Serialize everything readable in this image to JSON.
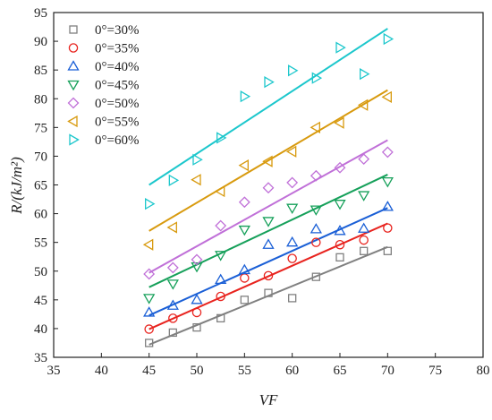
{
  "chart_data": {
    "type": "scatter",
    "title": "",
    "xlabel": "VF",
    "ylabel": "R/(kJ/m²)",
    "xlim": [
      35,
      80
    ],
    "ylim": [
      35,
      95
    ],
    "xticks": [
      35,
      40,
      45,
      50,
      55,
      60,
      65,
      70,
      75,
      80
    ],
    "yticks": [
      35,
      40,
      45,
      50,
      55,
      60,
      65,
      70,
      75,
      80,
      85,
      90,
      95
    ],
    "grid": false,
    "legend_position": "top-left",
    "x": [
      45,
      47.5,
      50,
      52.5,
      55,
      57.5,
      60,
      62.5,
      65,
      67.5,
      70
    ],
    "series": [
      {
        "name": "0°=30%",
        "marker": "square",
        "color": "#808080",
        "values": [
          37.5,
          39.3,
          40.2,
          41.8,
          45.0,
          46.2,
          45.3,
          49.0,
          52.4,
          53.5,
          53.5
        ],
        "fit": [
          37.2,
          54.2
        ]
      },
      {
        "name": "0°=35%",
        "marker": "circle",
        "color": "#e8231e",
        "values": [
          39.9,
          41.8,
          42.8,
          45.6,
          48.8,
          49.2,
          52.2,
          55.0,
          54.6,
          55.4,
          57.5
        ],
        "fit": [
          39.9,
          58.3
        ]
      },
      {
        "name": "0°=40%",
        "marker": "triangle-up",
        "color": "#1a5fd6",
        "values": [
          42.8,
          44.0,
          45.0,
          48.5,
          50.2,
          54.6,
          55.0,
          57.3,
          57.0,
          57.4,
          61.2
        ],
        "fit": [
          42.3,
          61.0
        ]
      },
      {
        "name": "0°=45%",
        "marker": "triangle-down",
        "color": "#16a05a",
        "values": [
          45.3,
          47.8,
          50.8,
          52.8,
          57.2,
          58.7,
          61.0,
          60.7,
          61.7,
          63.2,
          65.6
        ],
        "fit": [
          47.2,
          66.8
        ]
      },
      {
        "name": "0°=50%",
        "marker": "diamond",
        "color": "#c070d8",
        "values": [
          49.5,
          50.6,
          52.0,
          57.9,
          62.0,
          64.5,
          65.4,
          66.6,
          68.0,
          69.5,
          70.7
        ],
        "fit": [
          49.7,
          72.8
        ]
      },
      {
        "name": "0°=55%",
        "marker": "triangle-left",
        "color": "#d89a0e",
        "values": [
          54.6,
          57.6,
          65.9,
          63.9,
          68.4,
          69.1,
          70.8,
          75.0,
          75.8,
          78.9,
          80.3
        ],
        "fit": [
          57.0,
          81.5
        ]
      },
      {
        "name": "0°=60%",
        "marker": "triangle-right",
        "color": "#1cc7cc",
        "values": [
          61.7,
          65.8,
          69.4,
          73.2,
          80.4,
          82.9,
          84.9,
          83.6,
          88.9,
          84.3,
          90.4
        ],
        "fit": [
          65.0,
          92.2
        ]
      }
    ]
  }
}
